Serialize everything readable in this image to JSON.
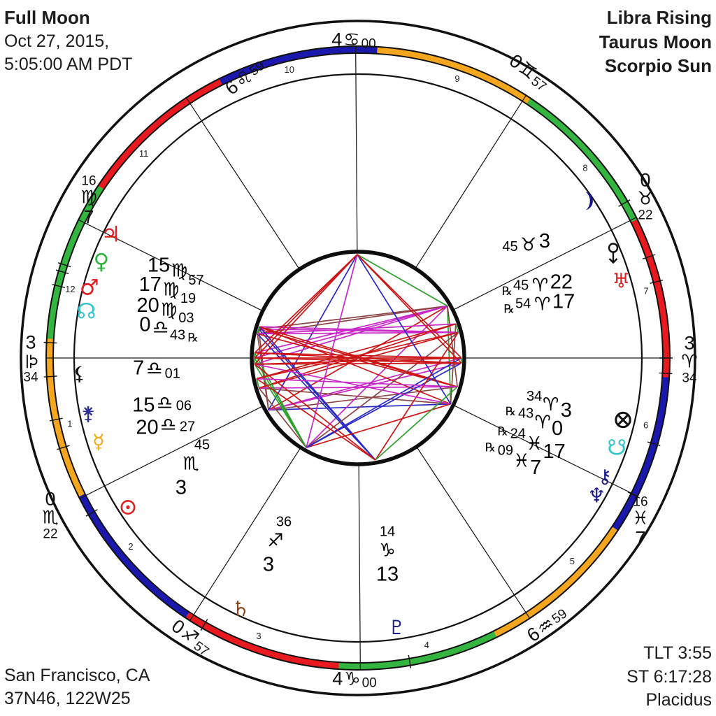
{
  "corners": {
    "top_left": {
      "title": "Full Moon",
      "lines": [
        "Oct 27, 2015,",
        "5:05:00 AM PDT"
      ]
    },
    "top_right": {
      "lines": [
        "Libra Rising",
        "Taurus Moon",
        "Scorpio Sun"
      ]
    },
    "bottom_left": {
      "lines": [
        "San Francisco, CA",
        "37N46, 122W25"
      ]
    },
    "bottom_right": {
      "lines": [
        "TLT 3:55",
        "ST 6:17:28",
        "Placidus"
      ]
    }
  },
  "chart_data": {
    "type": "astrology-wheel",
    "title": "Full Moon",
    "date": "Oct 27, 2015",
    "time": "5:05:00 AM PDT",
    "location": "San Francisco, CA",
    "coordinates": "37N46, 122W25",
    "rising": "Libra Rising",
    "moon_sign": "Taurus Moon",
    "sun_sign": "Scorpio Sun",
    "true_local_time": "TLT 3:55",
    "sidereal_time": "ST 6:17:28",
    "house_system": "Placidus",
    "element_colors": {
      "fire": "#e8191f",
      "earth": "#33b540",
      "air": "#f5a61f",
      "water": "#1b18ad"
    },
    "sign_order": [
      "aries",
      "taurus",
      "gemini",
      "cancer",
      "leo",
      "virgo",
      "libra",
      "scorpio",
      "sagittarius",
      "capricorn",
      "aquarius",
      "pisces"
    ],
    "signs": {
      "aries": {
        "glyph": "♈",
        "element": "fire"
      },
      "taurus": {
        "glyph": "♉",
        "element": "earth"
      },
      "gemini": {
        "glyph": "♊",
        "element": "air"
      },
      "cancer": {
        "glyph": "♋",
        "element": "water"
      },
      "leo": {
        "glyph": "♌",
        "element": "fire"
      },
      "virgo": {
        "glyph": "♍",
        "element": "earth"
      },
      "libra": {
        "glyph": "♎",
        "element": "air"
      },
      "scorpio": {
        "glyph": "♏",
        "element": "water"
      },
      "sagittarius": {
        "glyph": "♐",
        "element": "fire"
      },
      "capricorn": {
        "glyph": "♑",
        "element": "earth"
      },
      "aquarius": {
        "glyph": "♒",
        "element": "air"
      },
      "pisces": {
        "glyph": "♓",
        "element": "water"
      }
    },
    "houses": [
      {
        "num": 1,
        "deg": "3",
        "sign": "libra",
        "min": "34",
        "lon": 183.567
      },
      {
        "num": 2,
        "deg": "0",
        "sign": "scorpio",
        "min": "22",
        "lon": 210.367
      },
      {
        "num": 3,
        "deg": "0",
        "sign": "sagittarius",
        "min": "57",
        "lon": 240.95
      },
      {
        "num": 4,
        "deg": "4",
        "sign": "capricorn",
        "min": "00",
        "lon": 274.0
      },
      {
        "num": 5,
        "deg": "6",
        "sign": "aquarius",
        "min": "59",
        "lon": 306.983
      },
      {
        "num": 6,
        "deg": "7",
        "sign": "pisces",
        "min": "16",
        "lon": 337.267
      },
      {
        "num": 7,
        "deg": "3",
        "sign": "aries",
        "min": "34",
        "lon": 3.567
      },
      {
        "num": 8,
        "deg": "0",
        "sign": "taurus",
        "min": "22",
        "lon": 30.367
      },
      {
        "num": 9,
        "deg": "0",
        "sign": "gemini",
        "min": "57",
        "lon": 60.95
      },
      {
        "num": 10,
        "deg": "4",
        "sign": "cancer",
        "min": "00",
        "lon": 94.0
      },
      {
        "num": 11,
        "deg": "6",
        "sign": "leo",
        "min": "59",
        "lon": 126.983
      },
      {
        "num": 12,
        "deg": "7",
        "sign": "virgo",
        "min": "16",
        "lon": 157.267
      }
    ],
    "planets": [
      {
        "id": "sun",
        "name": "Sun",
        "glyph": "☉",
        "color": "#e02020",
        "deg": "3",
        "sign": "scorpio",
        "min": "45",
        "retro": false,
        "lon": 213.75
      },
      {
        "id": "moon",
        "name": "Moon",
        "glyph": "☽",
        "color": "#16168c",
        "deg": "3",
        "sign": "taurus",
        "min": "45",
        "retro": false,
        "lon": 33.75
      },
      {
        "id": "mercury",
        "name": "Mercury",
        "glyph": "☿",
        "color": "#f2a71d",
        "deg": "20",
        "sign": "libra",
        "min": "27",
        "retro": false,
        "lon": 200.45
      },
      {
        "id": "venus",
        "name": "Venus",
        "glyph": "♀",
        "color": "#2eb33d",
        "deg": "17",
        "sign": "virgo",
        "min": "19",
        "retro": false,
        "lon": 167.317
      },
      {
        "id": "mars",
        "name": "Mars",
        "glyph": "♂",
        "color": "#e02020",
        "deg": "20",
        "sign": "virgo",
        "min": "03",
        "retro": false,
        "lon": 170.05
      },
      {
        "id": "jupiter",
        "name": "Jupiter",
        "glyph": "♃",
        "color": "#e02020",
        "deg": "15",
        "sign": "virgo",
        "min": "57",
        "retro": false,
        "lon": 165.95
      },
      {
        "id": "saturn",
        "name": "Saturn",
        "glyph": "♄",
        "color": "#8a4a1f",
        "deg": "3",
        "sign": "sagittarius",
        "min": "36",
        "retro": false,
        "lon": 243.6
      },
      {
        "id": "uranus",
        "name": "Uranus",
        "glyph": "♅",
        "color": "#e02020",
        "deg": "17",
        "sign": "aries",
        "min": "54",
        "retro": true,
        "lon": 17.9
      },
      {
        "id": "neptune",
        "name": "Neptune",
        "glyph": "♆",
        "color": "#1b1b8a",
        "deg": "7",
        "sign": "pisces",
        "min": "09",
        "retro": true,
        "lon": 337.15
      },
      {
        "id": "pluto",
        "name": "Pluto",
        "glyph": "♇",
        "color": "#1b1b8a",
        "deg": "13",
        "sign": "capricorn",
        "min": "14",
        "retro": false,
        "lon": 283.233
      },
      {
        "id": "chiron",
        "name": "Chiron",
        "glyph": "⚷",
        "color": "#1b1b8a",
        "deg": "17",
        "sign": "pisces",
        "min": "24",
        "retro": true,
        "lon": 347.4
      },
      {
        "id": "north-node",
        "name": "North Node",
        "glyph": "☊",
        "color": "#35c5c8",
        "deg": "0",
        "sign": "libra",
        "min": "43",
        "retro": true,
        "lon": 180.717
      },
      {
        "id": "south-node",
        "name": "South Node",
        "glyph": "☋",
        "color": "#35c5c8",
        "deg": "0",
        "sign": "aries",
        "min": "43",
        "retro": true,
        "lon": 0.717
      },
      {
        "id": "lilith",
        "name": "Black Moon Lilith",
        "glyph": "⚸",
        "color": "#111111",
        "deg": "7",
        "sign": "libra",
        "min": "01",
        "retro": false,
        "lon": 187.017
      },
      {
        "id": "juno",
        "name": "Juno",
        "glyph": "⚵",
        "color": "#2b2b9e",
        "deg": "15",
        "sign": "libra",
        "min": "06",
        "retro": false,
        "lon": 195.1
      },
      {
        "id": "eris",
        "name": "Eris",
        "glyph": "",
        "color": "#111111",
        "deg": "22",
        "sign": "aries",
        "min": "45",
        "retro": true,
        "lon": 22.75
      },
      {
        "id": "part-of-fortune",
        "name": "Part of Fortune",
        "glyph": "⊗",
        "color": "#111111",
        "deg": "3",
        "sign": "aries",
        "min": "34",
        "retro": false,
        "lon": 3.567
      }
    ],
    "aspects": {
      "conjunction": {
        "angle": 0,
        "orb": 7,
        "color": "#2ca02c"
      },
      "semisquare": {
        "angle": 45,
        "orb": 2.5,
        "color": "#8b4545"
      },
      "sextile": {
        "angle": 60,
        "orb": 5.5,
        "color": "#2ca02c"
      },
      "square": {
        "angle": 90,
        "orb": 7,
        "color": "#cc1616"
      },
      "trine": {
        "angle": 120,
        "orb": 7,
        "color": "#2828c8"
      },
      "sesquiquadrate": {
        "angle": 135,
        "orb": 2.5,
        "color": "#8b4545"
      },
      "quincunx": {
        "angle": 150,
        "orb": 3.5,
        "color": "#c828c8"
      },
      "opposition": {
        "angle": 180,
        "orb": 9,
        "color": "#cc1616"
      }
    }
  }
}
